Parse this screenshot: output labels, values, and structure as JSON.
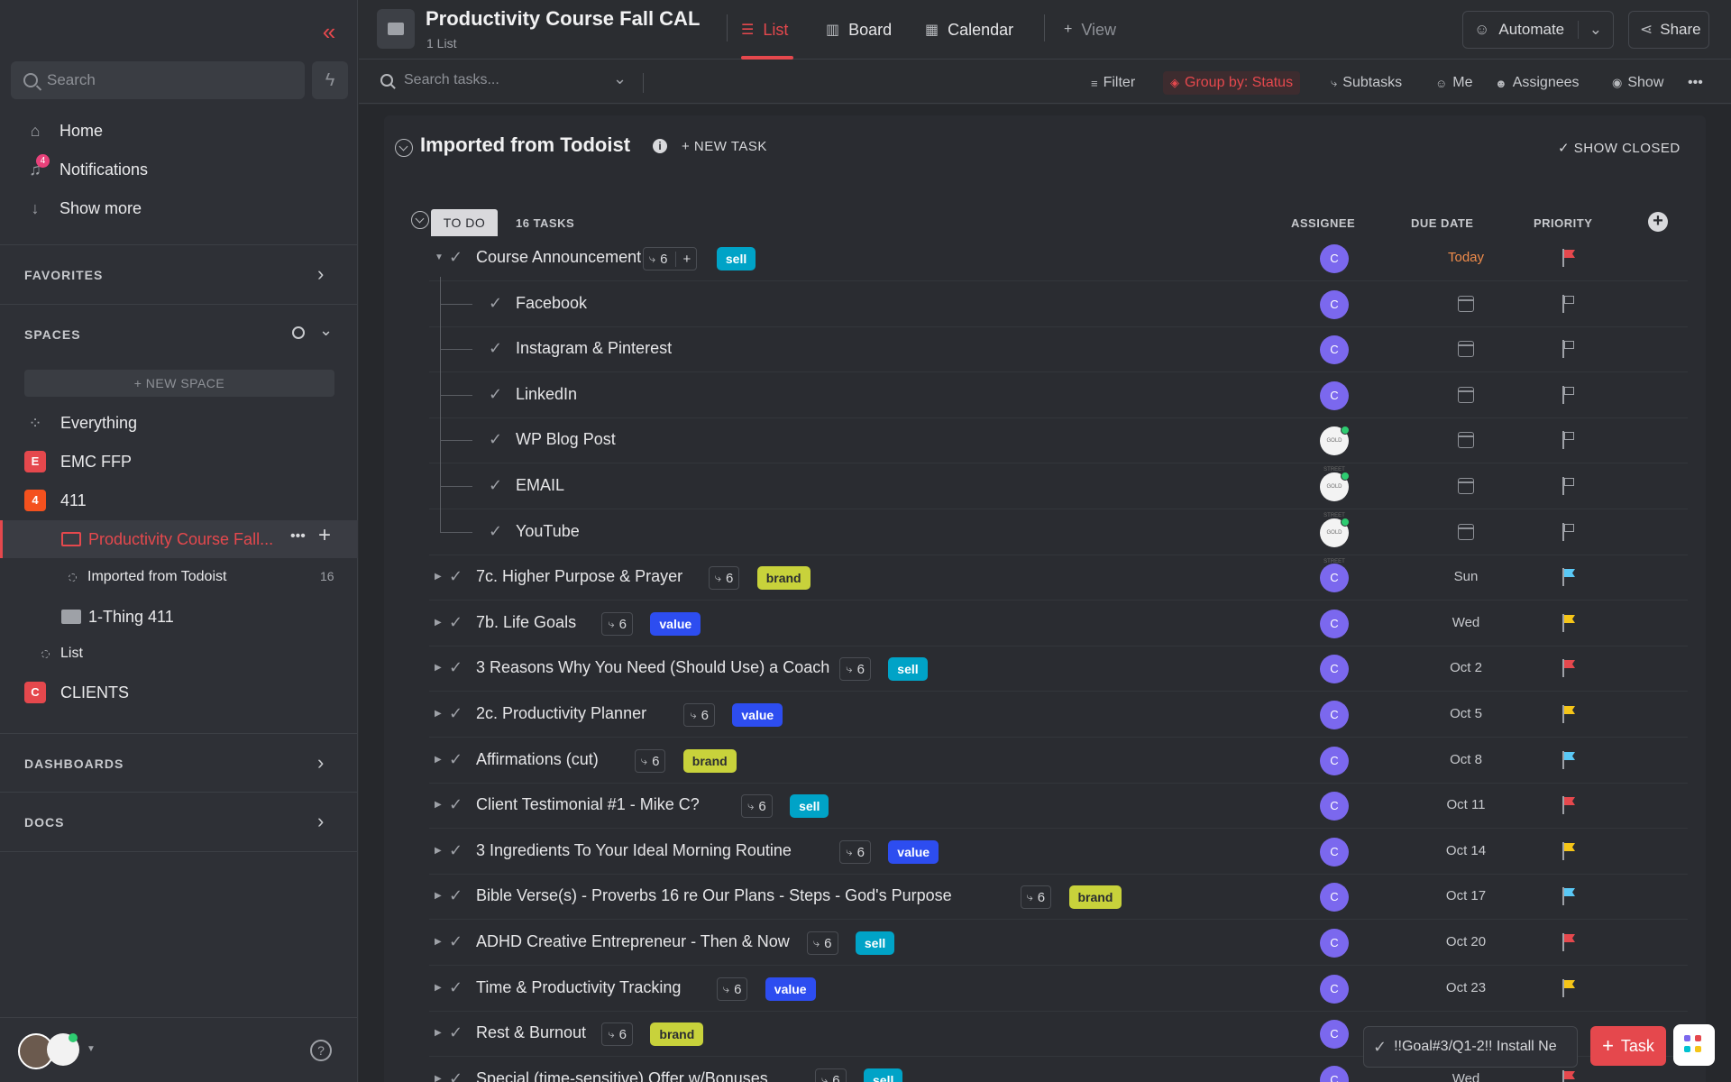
{
  "sidebar": {
    "search_placeholder": "Search",
    "nav": [
      {
        "label": "Home",
        "icon": "home-icon"
      },
      {
        "label": "Notifications",
        "icon": "bell-icon",
        "badge": "4"
      },
      {
        "label": "Show more",
        "icon": "arrow-down-icon"
      }
    ],
    "favorites_label": "FAVORITES",
    "spaces_label": "SPACES",
    "new_space_label": "+ NEW SPACE",
    "spaces": [
      {
        "label": "Everything",
        "badge": "",
        "color": ""
      },
      {
        "label": "EMC FFP",
        "badge": "E",
        "color": "#e5484d"
      },
      {
        "label": "411",
        "badge": "4",
        "color": "#f4511e"
      }
    ],
    "active_folder": "Productivity Course Fall...",
    "active_list": {
      "label": "Imported from Todoist",
      "count": "16"
    },
    "folder2": "1-Thing 411",
    "list2": "List",
    "clients": {
      "label": "CLIENTS",
      "badge": "C",
      "color": "#e5484d"
    },
    "dashboards_label": "DASHBOARDS",
    "docs_label": "DOCS",
    "help": "?"
  },
  "header": {
    "title": "Productivity Course Fall CAL",
    "subtitle": "1 List",
    "tabs": [
      {
        "label": "List",
        "active": true
      },
      {
        "label": "Board"
      },
      {
        "label": "Calendar"
      },
      {
        "label": "View"
      }
    ],
    "automate_label": "Automate",
    "share_label": "Share"
  },
  "toolbar": {
    "search_placeholder": "Search tasks...",
    "filter": "Filter",
    "group_by": "Group by: Status",
    "subtasks": "Subtasks",
    "me": "Me",
    "assignees": "Assignees",
    "show": "Show",
    "more": "•••"
  },
  "list": {
    "title": "Imported from Todoist",
    "new_task": "+ NEW TASK",
    "show_closed": "SHOW CLOSED",
    "status": "TO DO",
    "task_count": "16 TASKS",
    "columns": {
      "assignee": "ASSIGNEE",
      "due": "DUE DATE",
      "priority": "PRIORITY"
    },
    "tasks": [
      {
        "name": "Course Announcement",
        "subs": "6",
        "tag": "sell",
        "due": "Today",
        "priority": "#e5484d",
        "avatar": "C"
      },
      {
        "name": "Facebook",
        "child": true,
        "avatar": "C"
      },
      {
        "name": "Instagram & Pinterest",
        "child": true,
        "avatar": "C"
      },
      {
        "name": "LinkedIn",
        "child": true,
        "avatar": "C"
      },
      {
        "name": "WP Blog Post",
        "child": true,
        "avatar": "logo"
      },
      {
        "name": "EMAIL",
        "child": true,
        "avatar": "logo"
      },
      {
        "name": "YouTube",
        "child": true,
        "avatar": "logo"
      },
      {
        "name": "7c. Higher Purpose & Prayer",
        "subs": "6",
        "tag": "brand",
        "due": "Sun",
        "priority": "#5ac8f5",
        "avatar": "C"
      },
      {
        "name": "7b. Life Goals",
        "subs": "6",
        "tag": "value",
        "due": "Wed",
        "priority": "#f5c518",
        "avatar": "C"
      },
      {
        "name": "3 Reasons Why You Need (Should Use) a Coach",
        "subs": "6",
        "tag": "sell",
        "due": "Oct 2",
        "priority": "#e5484d",
        "avatar": "C"
      },
      {
        "name": "2c. Productivity Planner",
        "subs": "6",
        "tag": "value",
        "due": "Oct 5",
        "priority": "#f5c518",
        "avatar": "C"
      },
      {
        "name": "Affirmations (cut)",
        "subs": "6",
        "tag": "brand",
        "due": "Oct 8",
        "priority": "#5ac8f5",
        "avatar": "C"
      },
      {
        "name": "Client Testimonial #1 - Mike C?",
        "subs": "6",
        "tag": "sell",
        "due": "Oct 11",
        "priority": "#e5484d",
        "avatar": "C"
      },
      {
        "name": "3 Ingredients To Your Ideal Morning Routine",
        "subs": "6",
        "tag": "value",
        "due": "Oct 14",
        "priority": "#f5c518",
        "avatar": "C"
      },
      {
        "name": "Bible Verse(s) - Proverbs 16 re Our Plans - Steps - God's Purpose",
        "subs": "6",
        "tag": "brand",
        "due": "Oct 17",
        "priority": "#5ac8f5",
        "avatar": "C"
      },
      {
        "name": "ADHD Creative Entrepreneur - Then & Now",
        "subs": "6",
        "tag": "sell",
        "due": "Oct 20",
        "priority": "#e5484d",
        "avatar": "C"
      },
      {
        "name": "Time & Productivity Tracking",
        "subs": "6",
        "tag": "value",
        "due": "Oct 23",
        "priority": "#f5c518",
        "avatar": "C"
      },
      {
        "name": "Rest & Burnout",
        "subs": "6",
        "tag": "brand",
        "due": "",
        "priority": "",
        "avatar": "C"
      },
      {
        "name": "Special (time-sensitive) Offer w/Bonuses",
        "subs": "6",
        "tag": "sell",
        "due": "Wed",
        "priority": "#e5484d",
        "avatar": "C"
      }
    ]
  },
  "floating": {
    "tray_text": "!!Goal#3/Q1-2!! Install Ne",
    "task_button": "Task"
  }
}
